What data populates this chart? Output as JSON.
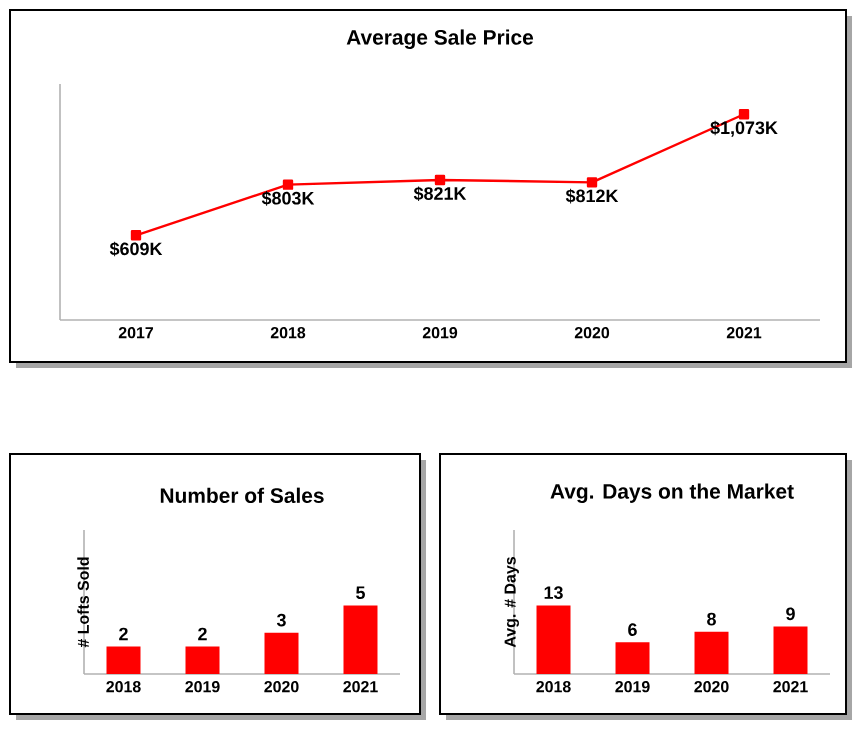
{
  "chart_data": [
    {
      "type": "line",
      "title": "Average Sale Price",
      "categories": [
        "2017",
        "2018",
        "2019",
        "2020",
        "2021"
      ],
      "series": [
        {
          "color": "#ff0000",
          "values": [
            609,
            803,
            821,
            812,
            1073
          ],
          "value_labels": [
            "$609K",
            "$803K",
            "$821K",
            "$812K",
            "$1,073K"
          ]
        }
      ],
      "marker": "square",
      "line_style": "solid"
    },
    {
      "type": "bar",
      "title": "Number of Sales",
      "ylabel": "# Lofts Sold",
      "categories": [
        "2018",
        "2019",
        "2020",
        "2021"
      ],
      "series": [
        {
          "color": "#ff0000",
          "values": [
            2,
            2,
            3,
            5
          ]
        }
      ],
      "data_labels": true,
      "tick_labels": "x"
    },
    {
      "type": "bar",
      "title": "Avg. Days on the Market",
      "ylabel": "Avg. # Days",
      "categories": [
        "2018",
        "2019",
        "2020",
        "2021"
      ],
      "series": [
        {
          "color": "#ff0000",
          "values": [
            13,
            6,
            8,
            9
          ]
        }
      ],
      "data_labels": true,
      "tick_labels": "x"
    }
  ]
}
